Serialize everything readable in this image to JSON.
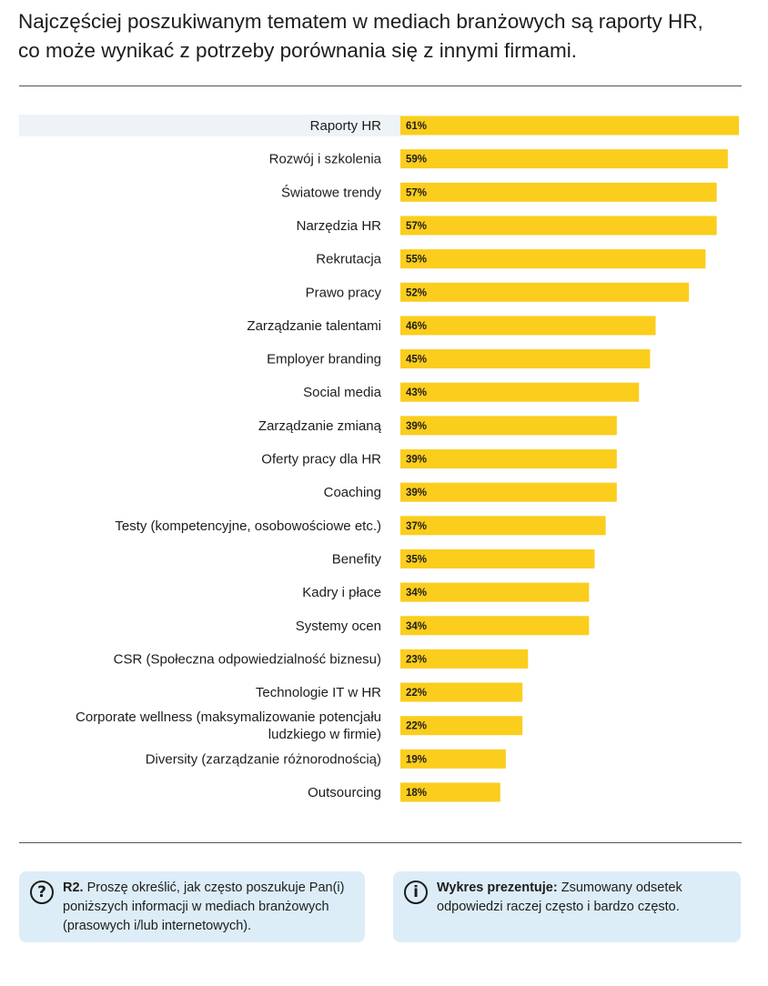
{
  "title": {
    "line1": "Najczęściej poszukiwanym tematem w mediach branżowych są raporty HR,",
    "line2": "co może wynikać z potrzeby porównania się z innymi firmami."
  },
  "chart_data": {
    "type": "bar",
    "orientation": "horizontal",
    "highlight_color": "#eef3f8",
    "bar_color": "#fbcd1d",
    "value_suffix": "%",
    "xlim": [
      0,
      61
    ],
    "categories": [
      [
        "Raporty HR"
      ],
      [
        "Rozwój i szkolenia"
      ],
      [
        "Światowe trendy"
      ],
      [
        "Narzędzia HR"
      ],
      [
        "Rekrutacja"
      ],
      [
        "Prawo pracy"
      ],
      [
        "Zarządzanie talentami"
      ],
      [
        "Employer branding"
      ],
      [
        "Social media"
      ],
      [
        "Zarządzanie zmianą"
      ],
      [
        "Oferty pracy dla HR"
      ],
      [
        "Coaching"
      ],
      [
        "Testy (kompetencyjne, osobowościowe etc.)"
      ],
      [
        "Benefity"
      ],
      [
        "Kadry i płace"
      ],
      [
        "Systemy ocen"
      ],
      [
        "CSR (Społeczna odpowiedzialność biznesu)"
      ],
      [
        "Technologie IT w HR"
      ],
      [
        "Corporate wellness (maksymalizowanie potencjału",
        "ludzkiego w firmie)"
      ],
      [
        "Diversity (zarządzanie różnorodnością)"
      ],
      [
        "Outsourcing"
      ]
    ],
    "values": [
      61,
      59,
      57,
      57,
      55,
      52,
      46,
      45,
      43,
      39,
      39,
      39,
      37,
      35,
      34,
      34,
      23,
      22,
      22,
      19,
      18
    ]
  },
  "notes": {
    "question": {
      "icon": "question-icon",
      "icon_glyph": "?",
      "bold": "R2.",
      "text": " Proszę określić, jak często poszukuje Pan(i) poniższych informacji w mediach branżowych (prasowych i/lub internetowych)."
    },
    "info": {
      "icon": "info-icon",
      "icon_glyph": "i",
      "bold": "Wykres prezentuje:",
      "text": " Zsumowany odsetek odpowiedzi raczej często i bardzo często."
    }
  }
}
